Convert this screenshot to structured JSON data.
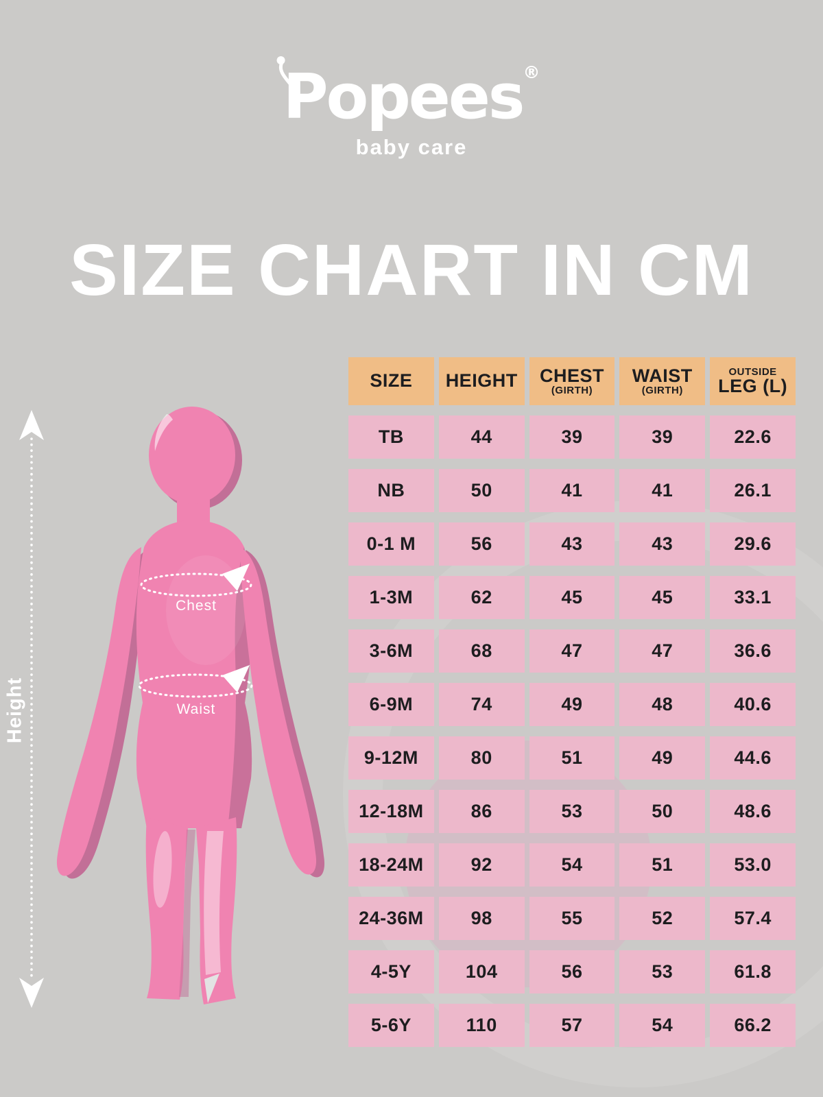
{
  "brand": {
    "name": "Popees",
    "registered": "®",
    "tagline": "baby care"
  },
  "title": "SIZE CHART IN CM",
  "figure": {
    "height_label": "Height",
    "chest_label": "Chest",
    "waist_label": "Waist"
  },
  "table": {
    "headers": [
      {
        "top": "SIZE"
      },
      {
        "top": "HEIGHT"
      },
      {
        "top": "CHEST",
        "bottom": "(GIRTH)"
      },
      {
        "top": "WAIST",
        "bottom": "(GIRTH)"
      },
      {
        "top": "OUTSIDE",
        "bottom": "LEG (L)"
      }
    ],
    "rows": [
      [
        "TB",
        "44",
        "39",
        "39",
        "22.6"
      ],
      [
        "NB",
        "50",
        "41",
        "41",
        "26.1"
      ],
      [
        "0-1 M",
        "56",
        "43",
        "43",
        "29.6"
      ],
      [
        "1-3M",
        "62",
        "45",
        "45",
        "33.1"
      ],
      [
        "3-6M",
        "68",
        "47",
        "47",
        "36.6"
      ],
      [
        "6-9M",
        "74",
        "49",
        "48",
        "40.6"
      ],
      [
        "9-12M",
        "80",
        "51",
        "49",
        "44.6"
      ],
      [
        "12-18M",
        "86",
        "53",
        "50",
        "48.6"
      ],
      [
        "18-24M",
        "92",
        "54",
        "51",
        "53.0"
      ],
      [
        "24-36M",
        "98",
        "55",
        "52",
        "57.4"
      ],
      [
        "4-5Y",
        "104",
        "56",
        "53",
        "61.8"
      ],
      [
        "5-6Y",
        "110",
        "57",
        "54",
        "66.2"
      ]
    ]
  },
  "chart_data": {
    "type": "table",
    "title": "SIZE CHART IN CM",
    "units": "cm",
    "columns": [
      "SIZE",
      "HEIGHT",
      "CHEST (GIRTH)",
      "WAIST (GIRTH)",
      "OUTSIDE LEG (L)"
    ],
    "rows": [
      [
        "TB",
        44,
        39,
        39,
        22.6
      ],
      [
        "NB",
        50,
        41,
        41,
        26.1
      ],
      [
        "0-1 M",
        56,
        43,
        43,
        29.6
      ],
      [
        "1-3M",
        62,
        45,
        45,
        33.1
      ],
      [
        "3-6M",
        68,
        47,
        47,
        36.6
      ],
      [
        "6-9M",
        74,
        49,
        48,
        40.6
      ],
      [
        "9-12M",
        80,
        51,
        49,
        44.6
      ],
      [
        "12-18M",
        86,
        53,
        50,
        48.6
      ],
      [
        "18-24M",
        92,
        54,
        51,
        53.0
      ],
      [
        "24-36M",
        98,
        55,
        52,
        57.4
      ],
      [
        "4-5Y",
        104,
        56,
        53,
        61.8
      ],
      [
        "5-6Y",
        110,
        57,
        54,
        66.2
      ]
    ]
  },
  "colors": {
    "background": "#cbcac8",
    "header_cell": "#f0bd86",
    "data_cell": "#edb8cb",
    "body_pink": "#f083b1",
    "body_pink_dark": "#c26f97",
    "body_pink_light": "#f6b9d2",
    "text": "#1d1d1f",
    "white": "#ffffff"
  }
}
